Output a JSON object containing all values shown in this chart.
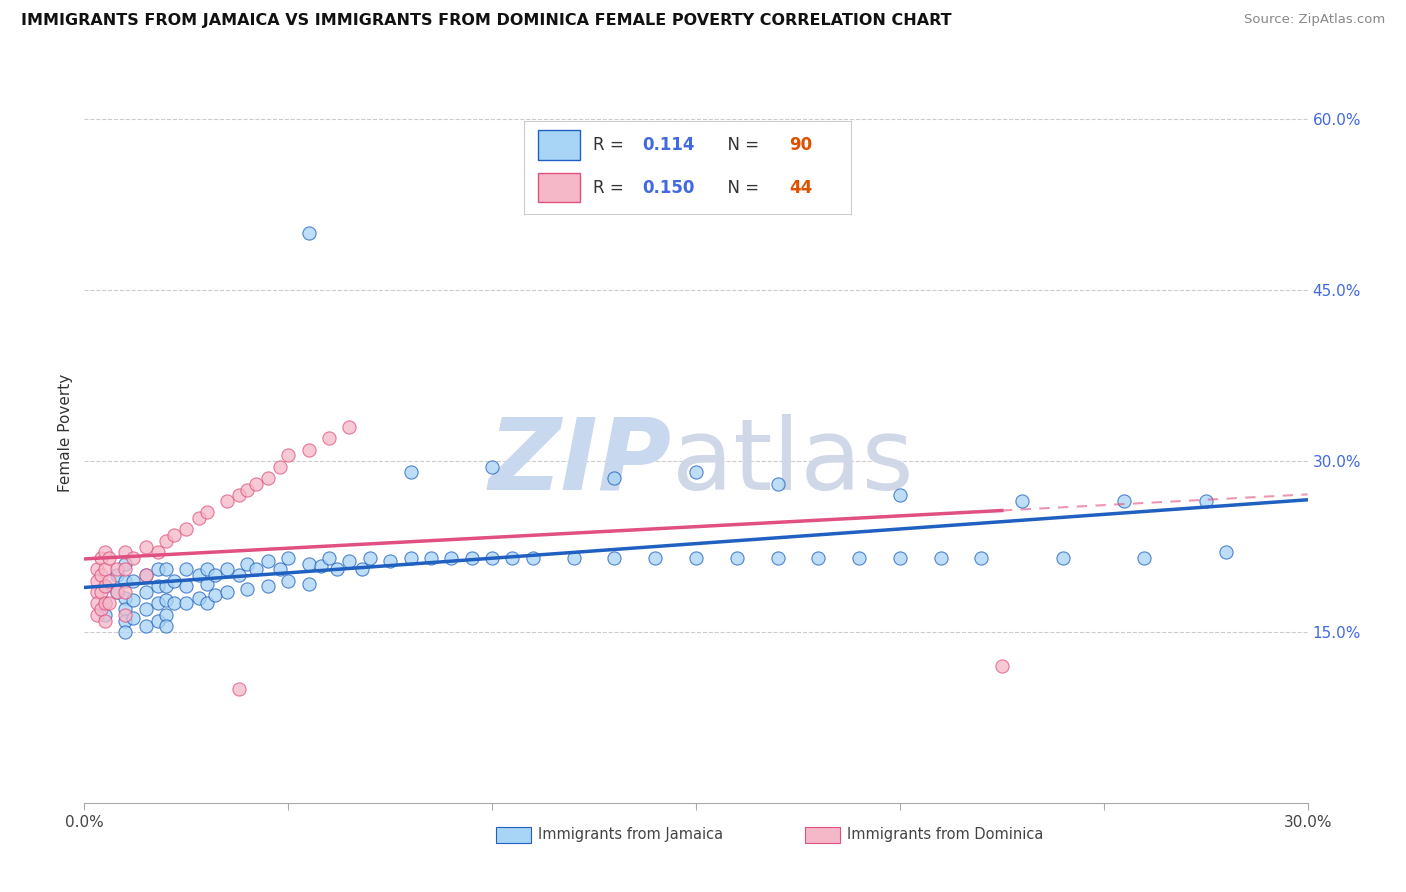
{
  "title": "IMMIGRANTS FROM JAMAICA VS IMMIGRANTS FROM DOMINICA FEMALE POVERTY CORRELATION CHART",
  "source": "Source: ZipAtlas.com",
  "ylabel": "Female Poverty",
  "xlim": [
    0.0,
    0.3
  ],
  "ylim": [
    0.0,
    0.65
  ],
  "xticks": [
    0.0,
    0.05,
    0.1,
    0.15,
    0.2,
    0.25,
    0.3
  ],
  "yticks_right": [
    0.15,
    0.3,
    0.45,
    0.6
  ],
  "ytick_labels_right": [
    "15.0%",
    "30.0%",
    "45.0%",
    "60.0%"
  ],
  "R_jamaica": 0.114,
  "N_jamaica": 90,
  "R_dominica": 0.15,
  "N_dominica": 44,
  "color_jamaica": "#a8d4f5",
  "color_dominica": "#f5b8c8",
  "line_color_jamaica": "#2060c0",
  "line_color_dominica": "#e05080",
  "legend_label_jamaica": "Immigrants from Jamaica",
  "legend_label_dominica": "Immigrants from Dominica",
  "jamaica_x": [
    0.005,
    0.005,
    0.005,
    0.008,
    0.008,
    0.01,
    0.01,
    0.01,
    0.01,
    0.01,
    0.01,
    0.012,
    0.012,
    0.012,
    0.015,
    0.015,
    0.015,
    0.015,
    0.018,
    0.018,
    0.018,
    0.018,
    0.02,
    0.02,
    0.02,
    0.02,
    0.02,
    0.022,
    0.022,
    0.025,
    0.025,
    0.025,
    0.028,
    0.028,
    0.03,
    0.03,
    0.03,
    0.032,
    0.032,
    0.035,
    0.035,
    0.038,
    0.04,
    0.04,
    0.042,
    0.045,
    0.045,
    0.048,
    0.05,
    0.05,
    0.055,
    0.055,
    0.058,
    0.06,
    0.062,
    0.065,
    0.068,
    0.07,
    0.075,
    0.08,
    0.085,
    0.09,
    0.095,
    0.1,
    0.105,
    0.11,
    0.12,
    0.13,
    0.14,
    0.15,
    0.16,
    0.17,
    0.18,
    0.19,
    0.2,
    0.21,
    0.22,
    0.24,
    0.26,
    0.28,
    0.055,
    0.08,
    0.1,
    0.13,
    0.15,
    0.17,
    0.2,
    0.23,
    0.255,
    0.275
  ],
  "jamaica_y": [
    0.19,
    0.175,
    0.165,
    0.2,
    0.185,
    0.21,
    0.195,
    0.18,
    0.17,
    0.16,
    0.15,
    0.195,
    0.178,
    0.162,
    0.2,
    0.185,
    0.17,
    0.155,
    0.205,
    0.19,
    0.175,
    0.16,
    0.205,
    0.19,
    0.178,
    0.165,
    0.155,
    0.195,
    0.175,
    0.205,
    0.19,
    0.175,
    0.2,
    0.18,
    0.205,
    0.192,
    0.175,
    0.2,
    0.182,
    0.205,
    0.185,
    0.2,
    0.21,
    0.188,
    0.205,
    0.212,
    0.19,
    0.205,
    0.215,
    0.195,
    0.21,
    0.192,
    0.208,
    0.215,
    0.205,
    0.212,
    0.205,
    0.215,
    0.212,
    0.215,
    0.215,
    0.215,
    0.215,
    0.215,
    0.215,
    0.215,
    0.215,
    0.215,
    0.215,
    0.215,
    0.215,
    0.215,
    0.215,
    0.215,
    0.215,
    0.215,
    0.215,
    0.215,
    0.215,
    0.22,
    0.5,
    0.29,
    0.295,
    0.285,
    0.29,
    0.28,
    0.27,
    0.265,
    0.265,
    0.265
  ],
  "dominica_x": [
    0.003,
    0.003,
    0.003,
    0.003,
    0.003,
    0.004,
    0.004,
    0.004,
    0.004,
    0.005,
    0.005,
    0.005,
    0.005,
    0.005,
    0.006,
    0.006,
    0.006,
    0.008,
    0.008,
    0.01,
    0.01,
    0.01,
    0.01,
    0.012,
    0.015,
    0.015,
    0.018,
    0.02,
    0.022,
    0.025,
    0.028,
    0.03,
    0.035,
    0.038,
    0.04,
    0.042,
    0.045,
    0.048,
    0.05,
    0.055,
    0.06,
    0.065,
    0.225,
    0.038
  ],
  "dominica_y": [
    0.205,
    0.195,
    0.185,
    0.175,
    0.165,
    0.215,
    0.2,
    0.185,
    0.17,
    0.22,
    0.205,
    0.19,
    0.175,
    0.16,
    0.215,
    0.195,
    0.175,
    0.205,
    0.185,
    0.22,
    0.205,
    0.185,
    0.165,
    0.215,
    0.225,
    0.2,
    0.22,
    0.23,
    0.235,
    0.24,
    0.25,
    0.255,
    0.265,
    0.27,
    0.275,
    0.28,
    0.285,
    0.295,
    0.305,
    0.31,
    0.32,
    0.33,
    0.12,
    0.1
  ]
}
